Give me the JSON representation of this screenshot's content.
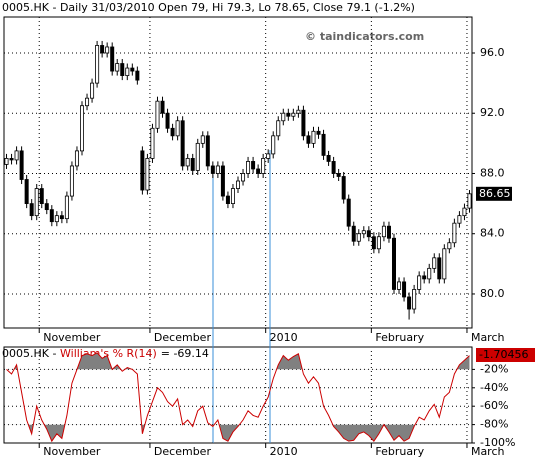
{
  "chart_data": [
    {
      "type": "candlestick",
      "title": "0005.HK - Daily 31/03/2010 Open 79, Hi 79.3, Lo 78.65, Close 79.1 (-1.2%)",
      "watermark": "© taindicators.com",
      "categories": [
        null,
        null,
        null,
        null,
        null,
        null,
        null,
        "November",
        null,
        null,
        null,
        null,
        null,
        null,
        null,
        null,
        null,
        null,
        null,
        null,
        null,
        null,
        null,
        null,
        null,
        null,
        null,
        null,
        null,
        "December",
        null,
        null,
        null,
        null,
        null,
        null,
        null,
        null,
        null,
        null,
        null,
        null,
        null,
        null,
        null,
        null,
        null,
        null,
        null,
        null,
        null,
        null,
        "2010",
        null,
        null,
        null,
        null,
        null,
        null,
        null,
        null,
        null,
        null,
        null,
        null,
        null,
        null,
        null,
        null,
        null,
        null,
        null,
        null,
        "February",
        null,
        null,
        null,
        null,
        null,
        null,
        null,
        null,
        null,
        null,
        null,
        null,
        null,
        null,
        null,
        null,
        null,
        null,
        "March"
      ],
      "open": [
        88.6,
        89.0,
        88.9,
        89.5,
        87.6,
        86.0,
        85.2,
        87.0,
        86.0,
        85.6,
        84.8,
        85.2,
        85.0,
        86.5,
        88.5,
        89.5,
        92.5,
        93.0,
        94.0,
        96.5,
        96.0,
        96.4,
        94.8,
        95.3,
        94.5,
        95.0,
        94.8,
        89.5,
        86.9,
        89.0,
        91.0,
        92.8,
        92.0,
        91.0,
        90.5,
        91.5,
        88.5,
        89.0,
        88.2,
        90.0,
        90.5,
        88.5,
        88.0,
        88.5,
        86.5,
        86.0,
        87.0,
        87.5,
        88.0,
        88.8,
        88.3,
        88.0,
        89.0,
        89.3,
        90.5,
        91.5,
        92.0,
        91.8,
        92.0,
        92.2,
        90.5,
        90.0,
        90.8,
        90.6,
        89.2,
        88.8,
        88.0,
        87.8,
        86.3,
        84.5,
        83.5,
        84.0,
        84.2,
        83.8,
        83.0,
        83.8,
        84.5,
        83.7,
        80.3,
        80.8,
        79.8,
        79.0,
        80.3,
        81.2,
        81.0,
        81.7,
        82.4,
        81.0,
        83.0,
        83.4,
        84.7,
        85.2,
        85.7
      ],
      "high": [
        89.3,
        89.3,
        89.8,
        89.8,
        87.9,
        86.3,
        87.3,
        87.3,
        86.3,
        85.9,
        85.5,
        85.5,
        86.8,
        88.8,
        89.8,
        92.8,
        93.3,
        94.3,
        96.8,
        96.8,
        96.7,
        96.7,
        95.6,
        95.6,
        95.3,
        95.3,
        95.1,
        89.8,
        89.3,
        91.3,
        93.1,
        93.1,
        92.3,
        91.3,
        91.8,
        91.8,
        89.3,
        89.3,
        90.3,
        90.8,
        90.8,
        88.8,
        88.8,
        88.8,
        86.8,
        87.3,
        87.8,
        88.3,
        89.1,
        89.1,
        88.6,
        89.3,
        89.6,
        90.8,
        91.8,
        92.3,
        92.3,
        92.3,
        92.5,
        92.5,
        90.8,
        91.1,
        91.1,
        90.9,
        89.5,
        89.1,
        88.3,
        88.1,
        86.6,
        84.8,
        84.3,
        84.5,
        84.5,
        84.1,
        84.1,
        84.8,
        84.8,
        84.0,
        81.1,
        81.1,
        80.1,
        80.6,
        81.5,
        81.5,
        82.0,
        82.7,
        82.7,
        83.3,
        83.7,
        85.0,
        85.5,
        86.0,
        86.9
      ],
      "low": [
        88.3,
        88.6,
        88.6,
        87.3,
        85.7,
        84.9,
        84.9,
        85.7,
        85.3,
        84.5,
        84.5,
        84.7,
        84.7,
        86.2,
        88.2,
        89.2,
        92.2,
        92.7,
        93.7,
        95.7,
        95.7,
        94.5,
        94.5,
        94.2,
        94.2,
        94.5,
        93.9,
        86.6,
        86.6,
        88.7,
        90.7,
        91.7,
        90.7,
        90.2,
        90.2,
        88.2,
        88.2,
        87.9,
        87.9,
        89.7,
        88.2,
        87.7,
        87.7,
        86.2,
        85.7,
        85.7,
        86.7,
        87.2,
        87.7,
        88.0,
        87.7,
        87.7,
        88.7,
        89.0,
        90.2,
        91.2,
        91.5,
        91.5,
        91.7,
        90.2,
        89.7,
        89.7,
        90.3,
        88.9,
        88.5,
        87.7,
        87.5,
        86.0,
        84.2,
        83.2,
        83.2,
        83.7,
        83.5,
        82.7,
        82.7,
        83.5,
        83.4,
        80.0,
        80.0,
        79.5,
        78.3,
        78.7,
        80.0,
        80.7,
        80.7,
        81.4,
        80.7,
        80.7,
        82.7,
        83.1,
        84.4,
        84.9,
        85.4
      ],
      "close": [
        89.0,
        88.9,
        89.5,
        87.6,
        86.0,
        85.2,
        87.0,
        86.0,
        85.6,
        84.8,
        85.2,
        85.0,
        86.5,
        88.5,
        89.5,
        92.5,
        93.0,
        94.0,
        96.5,
        96.0,
        96.4,
        94.8,
        95.3,
        94.5,
        95.0,
        94.8,
        94.2,
        86.9,
        89.0,
        91.0,
        92.8,
        92.0,
        91.0,
        90.5,
        91.5,
        88.5,
        89.0,
        88.2,
        90.0,
        90.5,
        88.5,
        88.0,
        88.5,
        86.5,
        86.0,
        87.0,
        87.5,
        88.0,
        88.8,
        88.3,
        88.0,
        89.0,
        89.3,
        90.5,
        91.5,
        92.0,
        91.8,
        92.0,
        92.2,
        90.5,
        90.0,
        90.8,
        90.6,
        89.2,
        88.8,
        88.0,
        87.8,
        86.3,
        84.5,
        83.5,
        84.0,
        84.2,
        83.8,
        83.0,
        83.8,
        84.5,
        83.7,
        80.3,
        80.8,
        79.8,
        79.0,
        80.3,
        81.2,
        81.0,
        81.7,
        82.4,
        81.0,
        83.0,
        83.4,
        84.7,
        85.2,
        85.7,
        86.65
      ],
      "up_color": "#ffffff",
      "down_color": "#000000",
      "ylim": [
        77.74,
        98.39
      ],
      "yticks": [
        {
          "value": 80,
          "label": "80.0"
        },
        {
          "value": 84,
          "label": "84.0"
        },
        {
          "value": 88,
          "label": "88.0"
        },
        {
          "value": 92,
          "label": "92.0"
        },
        {
          "value": 96,
          "label": "96.0"
        }
      ],
      "grid": true
    },
    {
      "type": "line",
      "title_prefix": "0005.HK -",
      "title_suffix": "= -69.14",
      "marker_label": "-1.70456",
      "series": [
        {
          "name": "William's % R(14)",
          "color": "#cc0000",
          "values": [
            -20,
            -25,
            -15,
            -45,
            -75,
            -90,
            -60,
            -75,
            -85,
            -98,
            -90,
            -95,
            -70,
            -35,
            -20,
            -5,
            -3,
            -5,
            -2,
            -8,
            -5,
            -20,
            -15,
            -22,
            -18,
            -20,
            -25,
            -90,
            -70,
            -55,
            -40,
            -45,
            -55,
            -60,
            -52,
            -80,
            -75,
            -82,
            -65,
            -60,
            -78,
            -82,
            -75,
            -95,
            -98,
            -88,
            -82,
            -75,
            -65,
            -70,
            -72,
            -60,
            -50,
            -30,
            -15,
            -5,
            -10,
            -6,
            -3,
            -25,
            -35,
            -28,
            -35,
            -60,
            -70,
            -82,
            -88,
            -95,
            -98,
            -97,
            -90,
            -88,
            -92,
            -98,
            -90,
            -80,
            -88,
            -97,
            -92,
            -98,
            -95,
            -82,
            -72,
            -75,
            -65,
            -58,
            -72,
            -50,
            -45,
            -25,
            -15,
            -10,
            -5
          ]
        }
      ],
      "bands": [
        -80,
        -20
      ],
      "band_color": "#808080",
      "ylim": [
        -100,
        0
      ],
      "yticks": [
        {
          "value": -100,
          "label": "-100%"
        },
        {
          "value": -80,
          "label": "-80%"
        },
        {
          "value": -60,
          "label": "-60%"
        },
        {
          "value": -40,
          "label": "-40%"
        },
        {
          "value": -20,
          "label": "-20%"
        }
      ],
      "grid": true
    }
  ]
}
